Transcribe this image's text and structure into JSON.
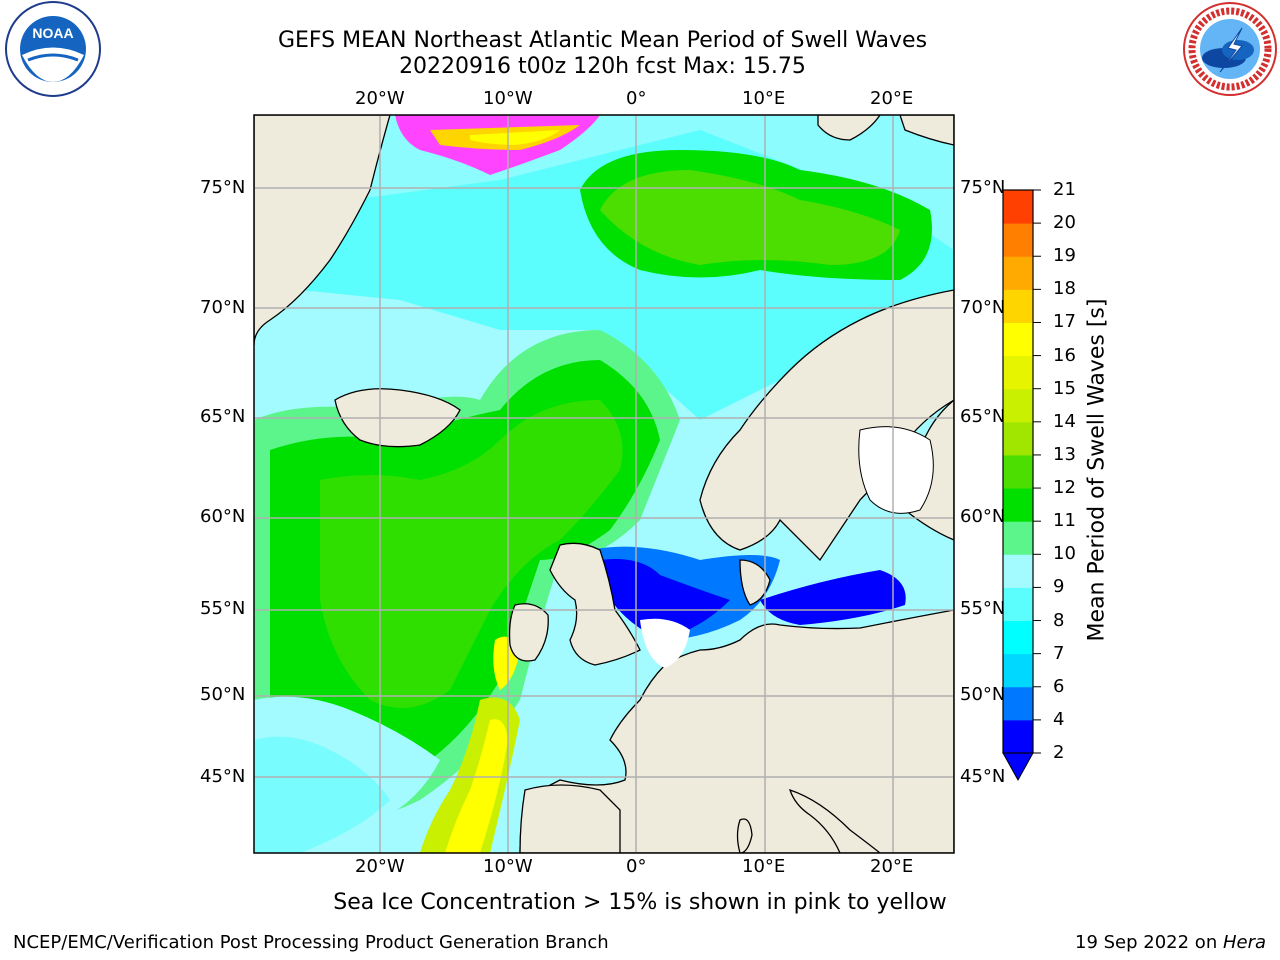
{
  "header": {
    "title_line1": "GEFS MEAN Northeast Atlantic Mean Period of Swell Waves",
    "title_line2": "20220916 t00z 120h fcst   Max: 15.75"
  },
  "logos": {
    "left": {
      "name": "noaa-logo",
      "text": "NOAA"
    },
    "right": {
      "name": "nws-logo",
      "text": "NATIONAL WEATHER SERVICE"
    }
  },
  "map": {
    "lon_labels": [
      "20°W",
      "10°W",
      "0°",
      "10°E",
      "20°E"
    ],
    "lat_labels": [
      "75°N",
      "70°N",
      "65°N",
      "60°N",
      "55°N",
      "50°N",
      "45°N"
    ],
    "colors": {
      "land": "#efebdc",
      "ocean_low": "#0000ff",
      "ocean_mid": "#5cfdfd",
      "ocean_high": "#00e000",
      "yellow": "#ffff00",
      "ice": "#ff44ff",
      "grid": "#b0b0b0"
    }
  },
  "colorbar": {
    "label": "Mean Period of Swell Waves [s]",
    "ticks": [
      "2",
      "4",
      "6",
      "7",
      "8",
      "9",
      "10",
      "11",
      "12",
      "13",
      "14",
      "15",
      "16",
      "17",
      "18",
      "19",
      "20",
      "21"
    ],
    "colors": [
      "#0000ff",
      "#0078ff",
      "#00d8ff",
      "#00ffff",
      "#5cfdfd",
      "#a3fbff",
      "#5cf58c",
      "#00e000",
      "#4cde00",
      "#a0e600",
      "#c8f000",
      "#e6f400",
      "#ffff00",
      "#ffd500",
      "#ffaa00",
      "#ff7f00",
      "#ff4000",
      "#ff0000"
    ]
  },
  "caption": "Sea Ice Concentration > 15% is shown in pink to yellow",
  "footer": {
    "left": "NCEP/EMC/Verification Post Processing Product Generation Branch",
    "right_prefix": "19 Sep 2022 on ",
    "right_italic": "Hera"
  }
}
